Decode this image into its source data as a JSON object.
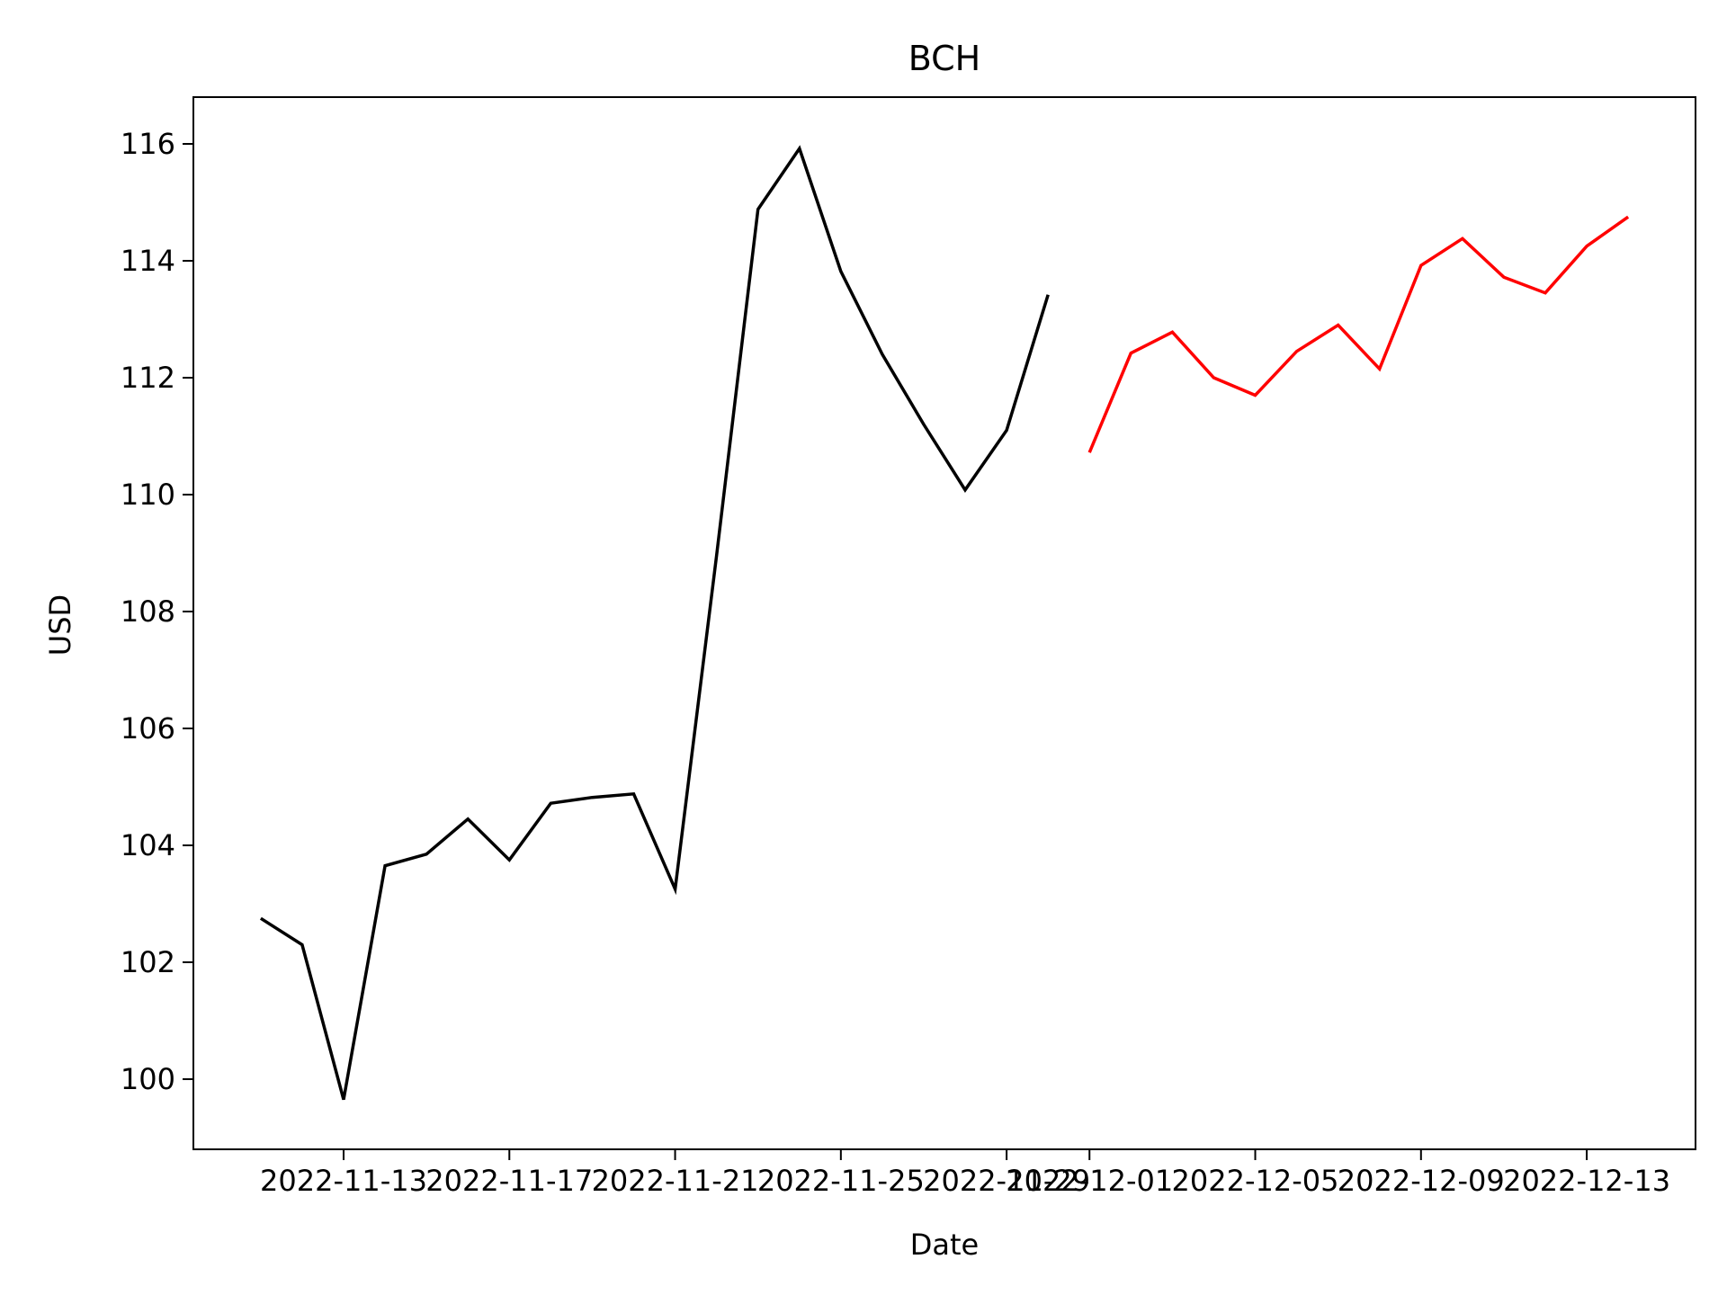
{
  "chart_data": {
    "type": "line",
    "title": "BCH",
    "xlabel": "Date",
    "ylabel": "USD",
    "ylim": [
      98.8,
      116.8
    ],
    "xlim": [
      "2022-11-09T09:00",
      "2022-12-15T15:00"
    ],
    "yticks": [
      100,
      102,
      104,
      106,
      108,
      110,
      112,
      114,
      116
    ],
    "xticks": [
      "2022-11-13",
      "2022-11-17",
      "2022-11-21",
      "2022-11-25",
      "2022-11-29",
      "2022-12-01",
      "2022-12-05",
      "2022-12-09",
      "2022-12-13"
    ],
    "grid": false,
    "series": [
      {
        "color": "#000000",
        "points": [
          [
            "2022-11-11",
            102.75
          ],
          [
            "2022-11-12",
            102.3
          ],
          [
            "2022-11-13",
            99.65
          ],
          [
            "2022-11-14",
            103.65
          ],
          [
            "2022-11-15",
            103.85
          ],
          [
            "2022-11-16",
            104.45
          ],
          [
            "2022-11-17",
            103.75
          ],
          [
            "2022-11-18",
            104.72
          ],
          [
            "2022-11-19",
            104.82
          ],
          [
            "2022-11-20",
            104.88
          ],
          [
            "2022-11-21",
            103.25
          ],
          [
            "2022-11-22",
            108.95
          ],
          [
            "2022-11-23",
            114.88
          ],
          [
            "2022-11-24",
            115.92
          ],
          [
            "2022-11-25",
            113.82
          ],
          [
            "2022-11-26",
            112.4
          ],
          [
            "2022-11-27",
            111.2
          ],
          [
            "2022-11-28",
            110.08
          ],
          [
            "2022-11-29",
            111.1
          ],
          [
            "2022-11-30",
            113.42
          ]
        ]
      },
      {
        "color": "#ff0000",
        "points": [
          [
            "2022-12-01",
            110.72
          ],
          [
            "2022-12-02",
            112.42
          ],
          [
            "2022-12-03",
            112.78
          ],
          [
            "2022-12-04",
            112.0
          ],
          [
            "2022-12-05",
            111.7
          ],
          [
            "2022-12-06",
            112.45
          ],
          [
            "2022-12-07",
            112.9
          ],
          [
            "2022-12-08",
            112.15
          ],
          [
            "2022-12-09",
            113.92
          ],
          [
            "2022-12-10",
            114.38
          ],
          [
            "2022-12-11",
            113.72
          ],
          [
            "2022-12-12",
            113.45
          ],
          [
            "2022-12-13",
            114.25
          ],
          [
            "2022-12-14",
            114.75
          ]
        ]
      }
    ]
  }
}
